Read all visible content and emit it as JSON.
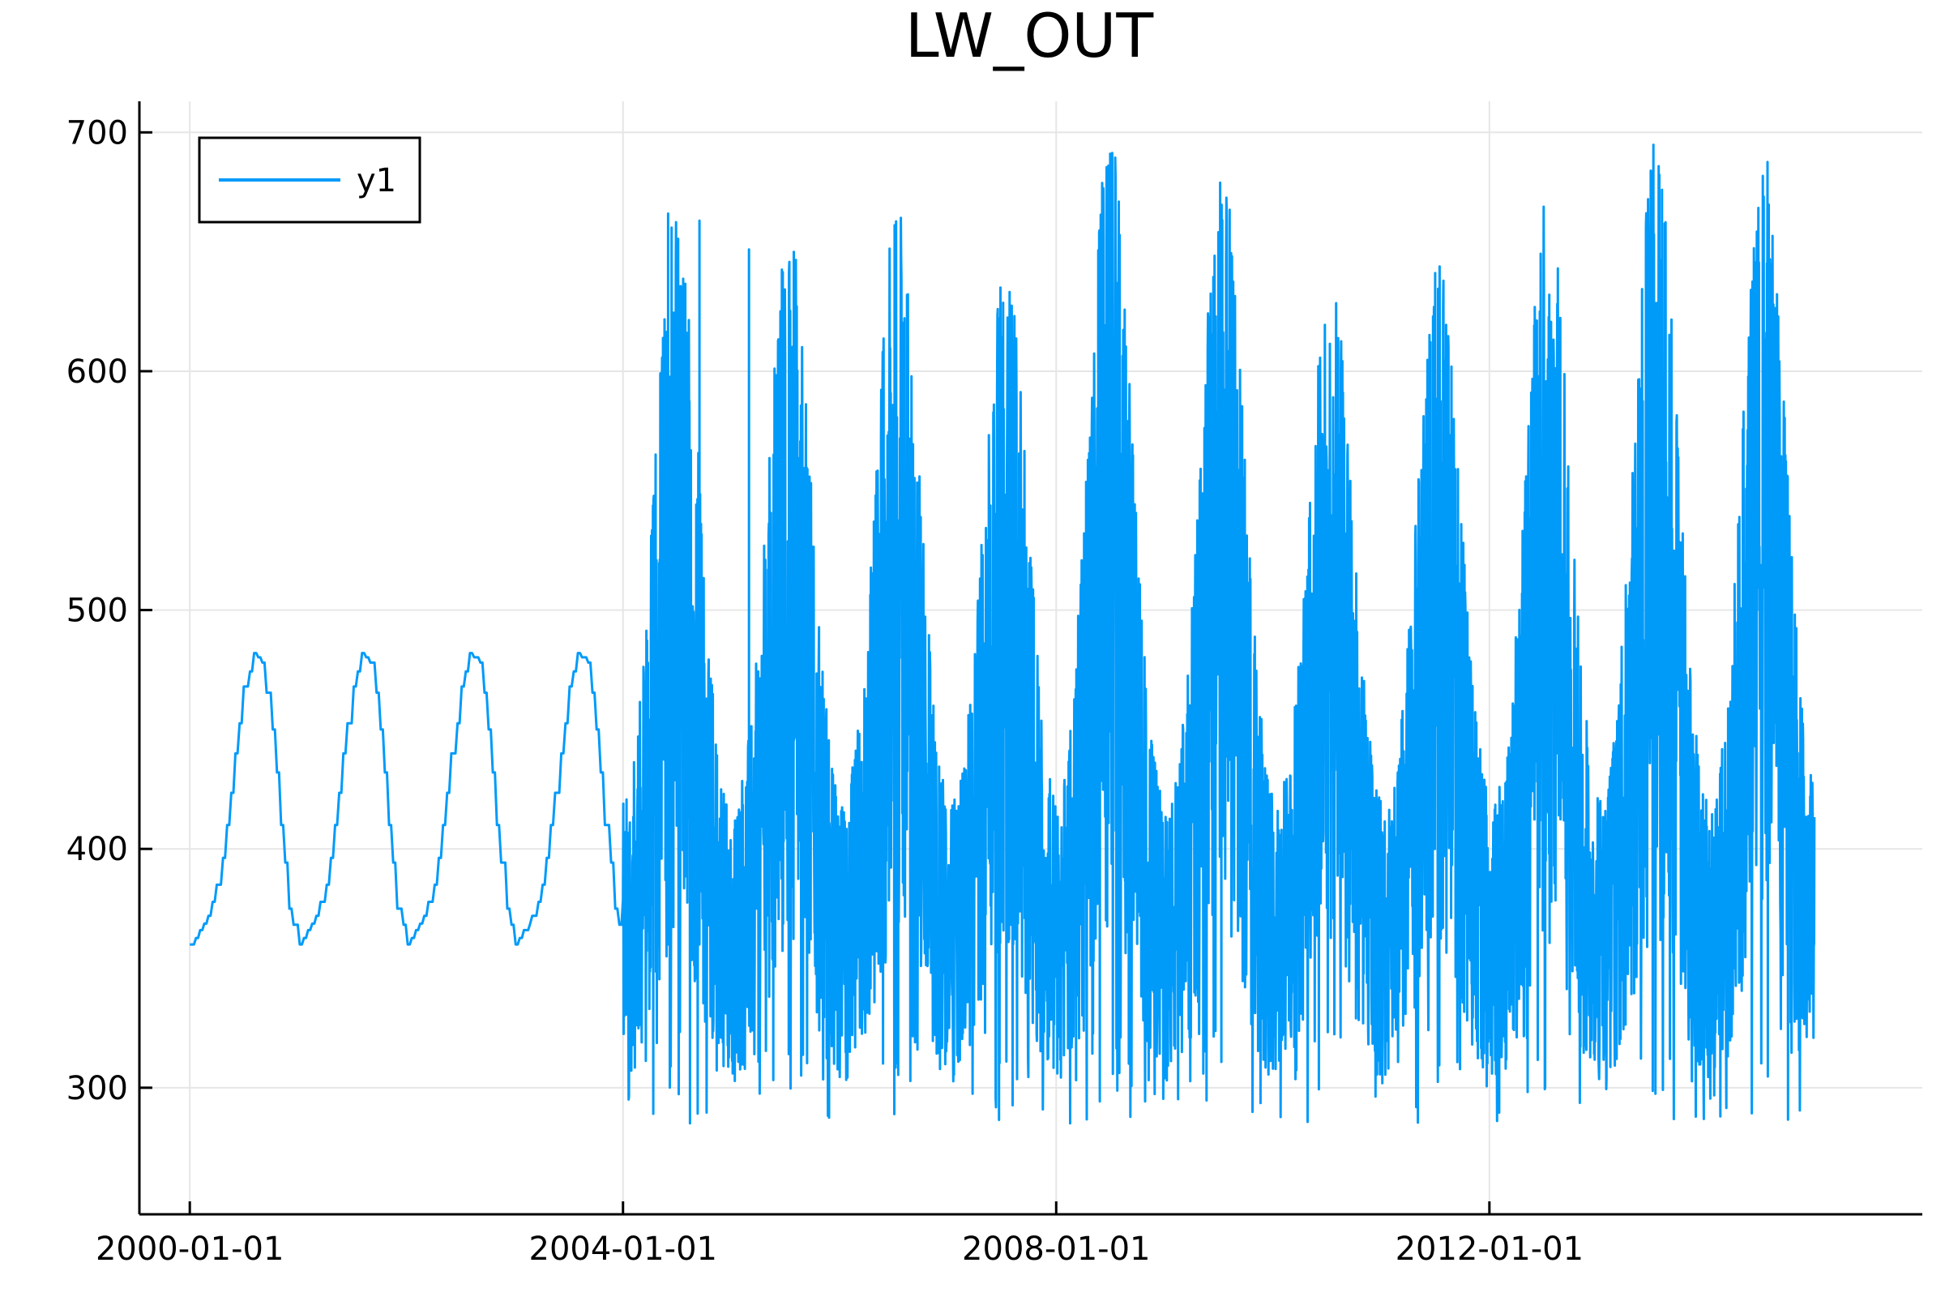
{
  "chart_data": {
    "type": "line",
    "title": "LW_OUT",
    "xlabel": "",
    "ylabel": "",
    "x_ticks": [
      "2000-01-01",
      "2004-01-01",
      "2008-01-01",
      "2012-01-01"
    ],
    "y_ticks": [
      300,
      400,
      500,
      600,
      700
    ],
    "xlim": [
      "1999-07-15",
      "2015-12-31"
    ],
    "ylim": [
      247,
      713
    ],
    "grid": true,
    "legend_position": "top-left",
    "series": [
      {
        "name": "y1",
        "color": "#009af9",
        "phase1_monthly": {
          "start": "2000-01-01",
          "end": "2004-01-01",
          "values": [
            360,
            366,
            372,
            385,
            410,
            440,
            468,
            482,
            478,
            450,
            410,
            375
          ]
        },
        "phase2_noisy": {
          "start": "2004-01-01",
          "end": "2015-01-01",
          "seasonal_low": 350,
          "annual_peaks": [
            {
              "date": "2004-07-01",
              "value": 676
            },
            {
              "date": "2005-07-15",
              "value": 660
            },
            {
              "date": "2006-07-15",
              "value": 670
            },
            {
              "date": "2007-07-15",
              "value": 645
            },
            {
              "date": "2008-07-01",
              "value": 700
            },
            {
              "date": "2009-07-15",
              "value": 686
            },
            {
              "date": "2010-07-15",
              "value": 640
            },
            {
              "date": "2011-07-15",
              "value": 647
            },
            {
              "date": "2012-07-15",
              "value": 675
            },
            {
              "date": "2013-07-15",
              "value": 700
            },
            {
              "date": "2014-07-15",
              "value": 692
            }
          ],
          "min_observed": 258,
          "spike_outliers": [
            {
              "date": "2004-06-01",
              "value": 666
            },
            {
              "date": "2004-09-15",
              "value": 663
            },
            {
              "date": "2005-03-01",
              "value": 651
            }
          ]
        }
      }
    ]
  }
}
